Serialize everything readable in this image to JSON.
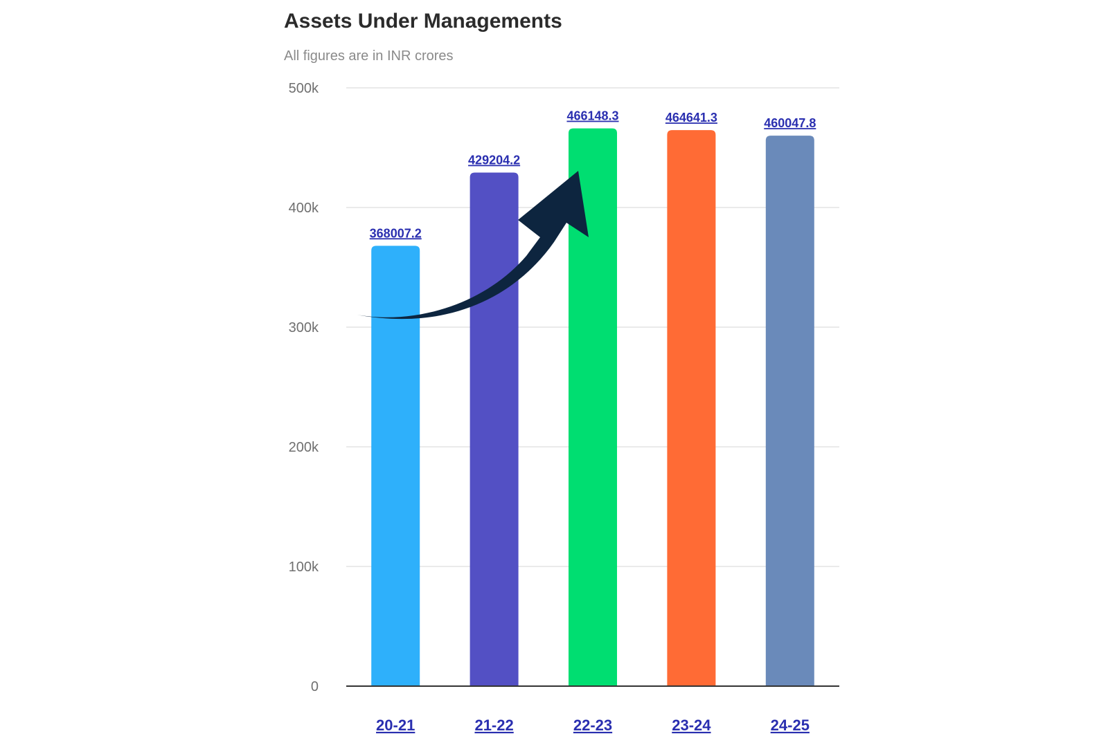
{
  "chart_data": {
    "type": "bar",
    "title": "Assets Under Managements",
    "subtitle": "All figures are in INR crores",
    "categories": [
      "20-21",
      "21-22",
      "22-23",
      "23-24",
      "24-25"
    ],
    "values": [
      368007.2,
      429204.2,
      466148.3,
      464641.3,
      460047.8
    ],
    "value_labels": [
      "368007.2",
      "429204.2",
      "466148.3",
      "464641.3",
      "460047.8"
    ],
    "bar_colors": [
      "#2eb0fb",
      "#5350c4",
      "#00de71",
      "#ff6b35",
      "#6a8aba"
    ],
    "xlabel": "",
    "ylabel": "",
    "ylim": [
      0,
      500000
    ],
    "yticks": [
      0,
      100000,
      200000,
      300000,
      400000,
      500000
    ],
    "ytick_labels": [
      "0",
      "100k",
      "200k",
      "300k",
      "400k",
      "500k"
    ],
    "grid": true,
    "legend": "none",
    "annotation": "upward-trend-arrow",
    "arrow_color": "#0d253f"
  }
}
